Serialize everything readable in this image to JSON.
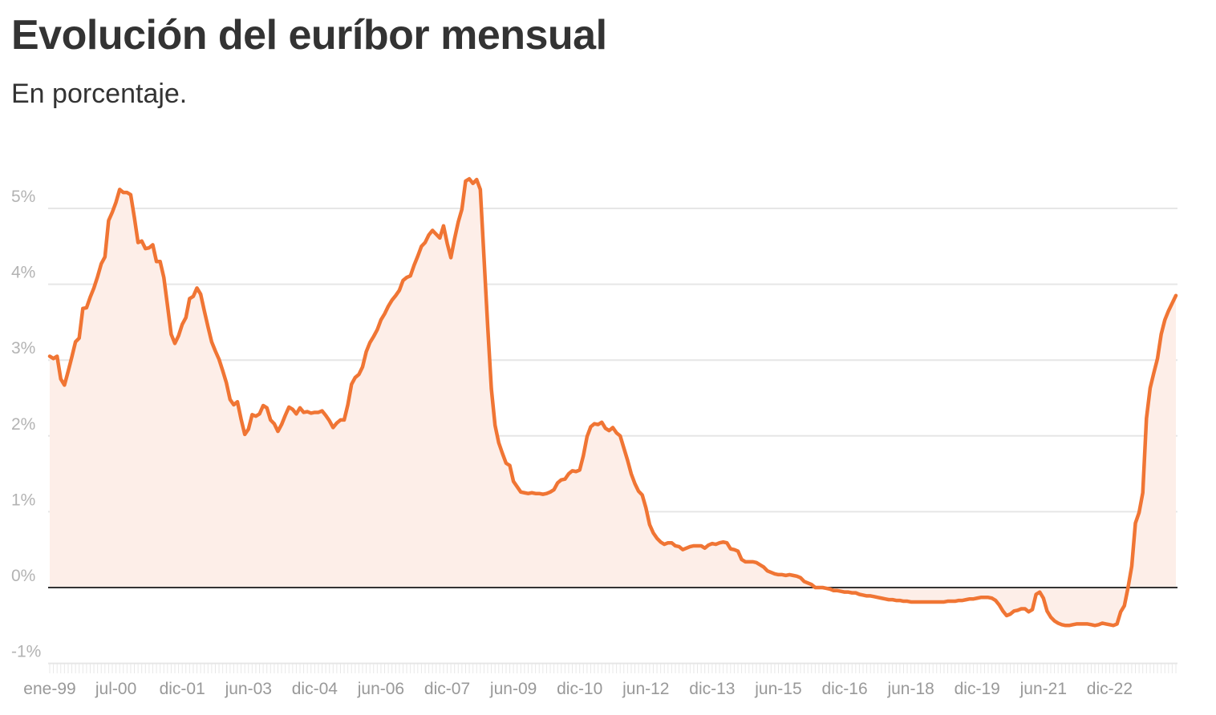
{
  "title": "Evolución del euríbor mensual",
  "subtitle": "En porcentaje.",
  "colors": {
    "line": "#f07534",
    "area": "#fdeee8",
    "grid": "#e6e6e6",
    "zero": "#333333"
  },
  "chart_data": {
    "type": "area",
    "title": "Evolución del euríbor mensual",
    "subtitle": "En porcentaje.",
    "ylim": [
      -1,
      5.3
    ],
    "y_ticks": [
      -1,
      0,
      1,
      2,
      3,
      4,
      5
    ],
    "y_tick_labels": [
      "-1%",
      "0%",
      "1%",
      "2%",
      "3%",
      "4%",
      "5%"
    ],
    "x_tick_labels": [
      "ene-99",
      "jul-00",
      "dic-01",
      "jun-03",
      "dic-04",
      "jun-06",
      "dic-07",
      "jun-09",
      "dic-10",
      "jun-12",
      "dic-13",
      "jun-15",
      "dic-16",
      "jun-18",
      "dic-19",
      "jun-21",
      "dic-22"
    ],
    "grid": true,
    "x_start": "ene-99",
    "x_end": "mar-23",
    "series": [
      {
        "values": [
          3.05,
          3.02,
          3.05,
          2.75,
          2.67,
          2.85,
          3.04,
          3.24,
          3.29,
          3.68,
          3.69,
          3.83,
          3.95,
          4.1,
          4.27,
          4.36,
          4.84,
          4.95,
          5.08,
          5.25,
          5.21,
          5.21,
          5.18,
          4.88,
          4.55,
          4.57,
          4.47,
          4.48,
          4.52,
          4.3,
          4.3,
          4.09,
          3.72,
          3.34,
          3.22,
          3.32,
          3.47,
          3.56,
          3.81,
          3.84,
          3.95,
          3.87,
          3.65,
          3.44,
          3.24,
          3.12,
          3.01,
          2.86,
          2.7,
          2.48,
          2.41,
          2.45,
          2.22,
          2.02,
          2.09,
          2.28,
          2.26,
          2.29,
          2.4,
          2.37,
          2.21,
          2.16,
          2.06,
          2.15,
          2.27,
          2.38,
          2.35,
          2.29,
          2.37,
          2.31,
          2.32,
          2.3,
          2.31,
          2.31,
          2.33,
          2.27,
          2.2,
          2.11,
          2.17,
          2.21,
          2.21,
          2.41,
          2.68,
          2.77,
          2.81,
          2.91,
          3.11,
          3.23,
          3.31,
          3.4,
          3.53,
          3.61,
          3.71,
          3.79,
          3.85,
          3.92,
          4.05,
          4.09,
          4.11,
          4.25,
          4.37,
          4.5,
          4.55,
          4.65,
          4.71,
          4.66,
          4.61,
          4.77,
          4.54,
          4.35,
          4.6,
          4.82,
          4.99,
          5.36,
          5.39,
          5.33,
          5.38,
          5.25,
          4.35,
          3.45,
          2.62,
          2.14,
          1.91,
          1.77,
          1.64,
          1.61,
          1.4,
          1.33,
          1.26,
          1.25,
          1.24,
          1.25,
          1.24,
          1.24,
          1.23,
          1.24,
          1.26,
          1.29,
          1.38,
          1.42,
          1.43,
          1.5,
          1.54,
          1.53,
          1.55,
          1.74,
          1.99,
          2.12,
          2.16,
          2.15,
          2.18,
          2.1,
          2.07,
          2.11,
          2.04,
          2.0,
          1.84,
          1.68,
          1.5,
          1.37,
          1.27,
          1.22,
          1.05,
          0.83,
          0.72,
          0.65,
          0.6,
          0.57,
          0.59,
          0.59,
          0.55,
          0.54,
          0.5,
          0.52,
          0.54,
          0.55,
          0.55,
          0.55,
          0.52,
          0.56,
          0.58,
          0.57,
          0.59,
          0.6,
          0.59,
          0.51,
          0.5,
          0.48,
          0.37,
          0.34,
          0.34,
          0.34,
          0.33,
          0.3,
          0.27,
          0.22,
          0.2,
          0.18,
          0.17,
          0.17,
          0.16,
          0.17,
          0.16,
          0.15,
          0.13,
          0.08,
          0.06,
          0.04,
          0.0,
          0.0,
          0.0,
          -0.01,
          -0.02,
          -0.04,
          -0.04,
          -0.05,
          -0.06,
          -0.06,
          -0.07,
          -0.07,
          -0.09,
          -0.1,
          -0.11,
          -0.11,
          -0.12,
          -0.13,
          -0.14,
          -0.15,
          -0.16,
          -0.16,
          -0.17,
          -0.17,
          -0.18,
          -0.18,
          -0.19,
          -0.19,
          -0.19,
          -0.19,
          -0.19,
          -0.19,
          -0.19,
          -0.19,
          -0.19,
          -0.19,
          -0.18,
          -0.18,
          -0.18,
          -0.17,
          -0.17,
          -0.16,
          -0.15,
          -0.15,
          -0.14,
          -0.13,
          -0.13,
          -0.13,
          -0.14,
          -0.17,
          -0.23,
          -0.31,
          -0.37,
          -0.35,
          -0.31,
          -0.3,
          -0.28,
          -0.28,
          -0.32,
          -0.29,
          -0.09,
          -0.06,
          -0.14,
          -0.31,
          -0.39,
          -0.44,
          -0.47,
          -0.49,
          -0.5,
          -0.5,
          -0.49,
          -0.48,
          -0.48,
          -0.48,
          -0.48,
          -0.49,
          -0.5,
          -0.49,
          -0.47,
          -0.48,
          -0.49,
          -0.5,
          -0.48,
          -0.32,
          -0.24,
          0.0,
          0.28,
          0.85,
          0.99,
          1.25,
          2.23,
          2.63,
          2.83,
          3.02,
          3.34,
          3.53,
          3.65,
          3.75,
          3.85
        ]
      }
    ]
  }
}
